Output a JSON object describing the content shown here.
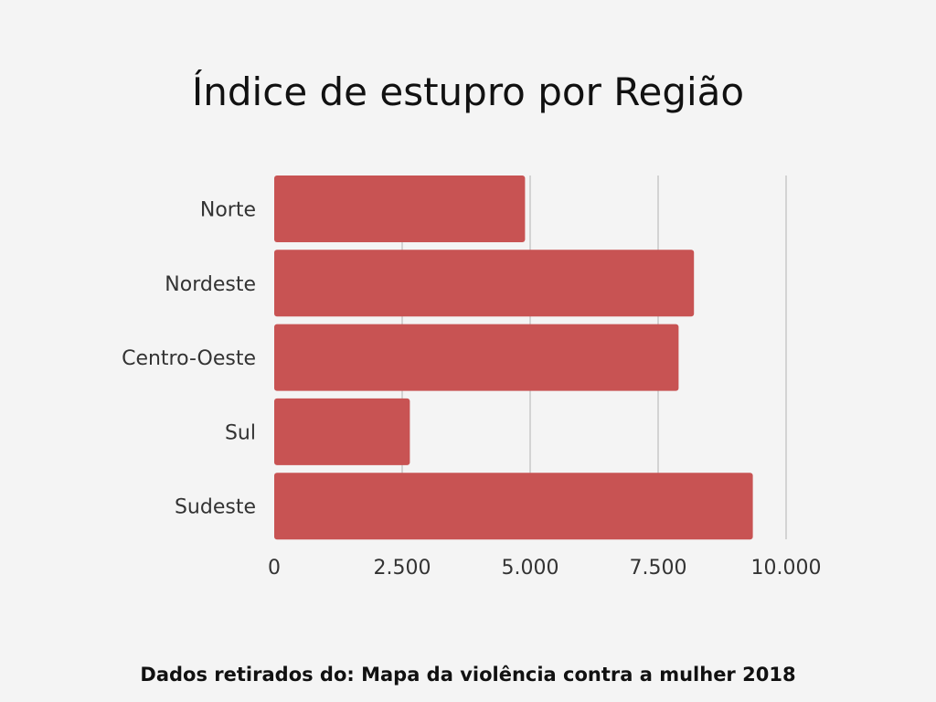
{
  "title": "Índice de estupro por Região",
  "footer": "Dados retirados do: Mapa da violência contra a mulher 2018",
  "colors": {
    "bar": "#c85353",
    "grid": "#c8c8c8",
    "background": "#f4f4f4"
  },
  "chart_data": {
    "type": "bar",
    "orientation": "horizontal",
    "title": "Índice de estupro por Região",
    "xlabel": "",
    "ylabel": "",
    "categories": [
      "Norte",
      "Nordeste",
      "Centro-Oeste",
      "Sul",
      "Sudeste"
    ],
    "values": [
      4900,
      8200,
      7900,
      2650,
      9350
    ],
    "xlim": [
      0,
      10000
    ],
    "ticks": [
      0,
      2500,
      5000,
      7500,
      10000
    ],
    "tick_labels": [
      "0",
      "2.500",
      "5.000",
      "7.500",
      "10.000"
    ],
    "grid": true,
    "legend": "none"
  }
}
